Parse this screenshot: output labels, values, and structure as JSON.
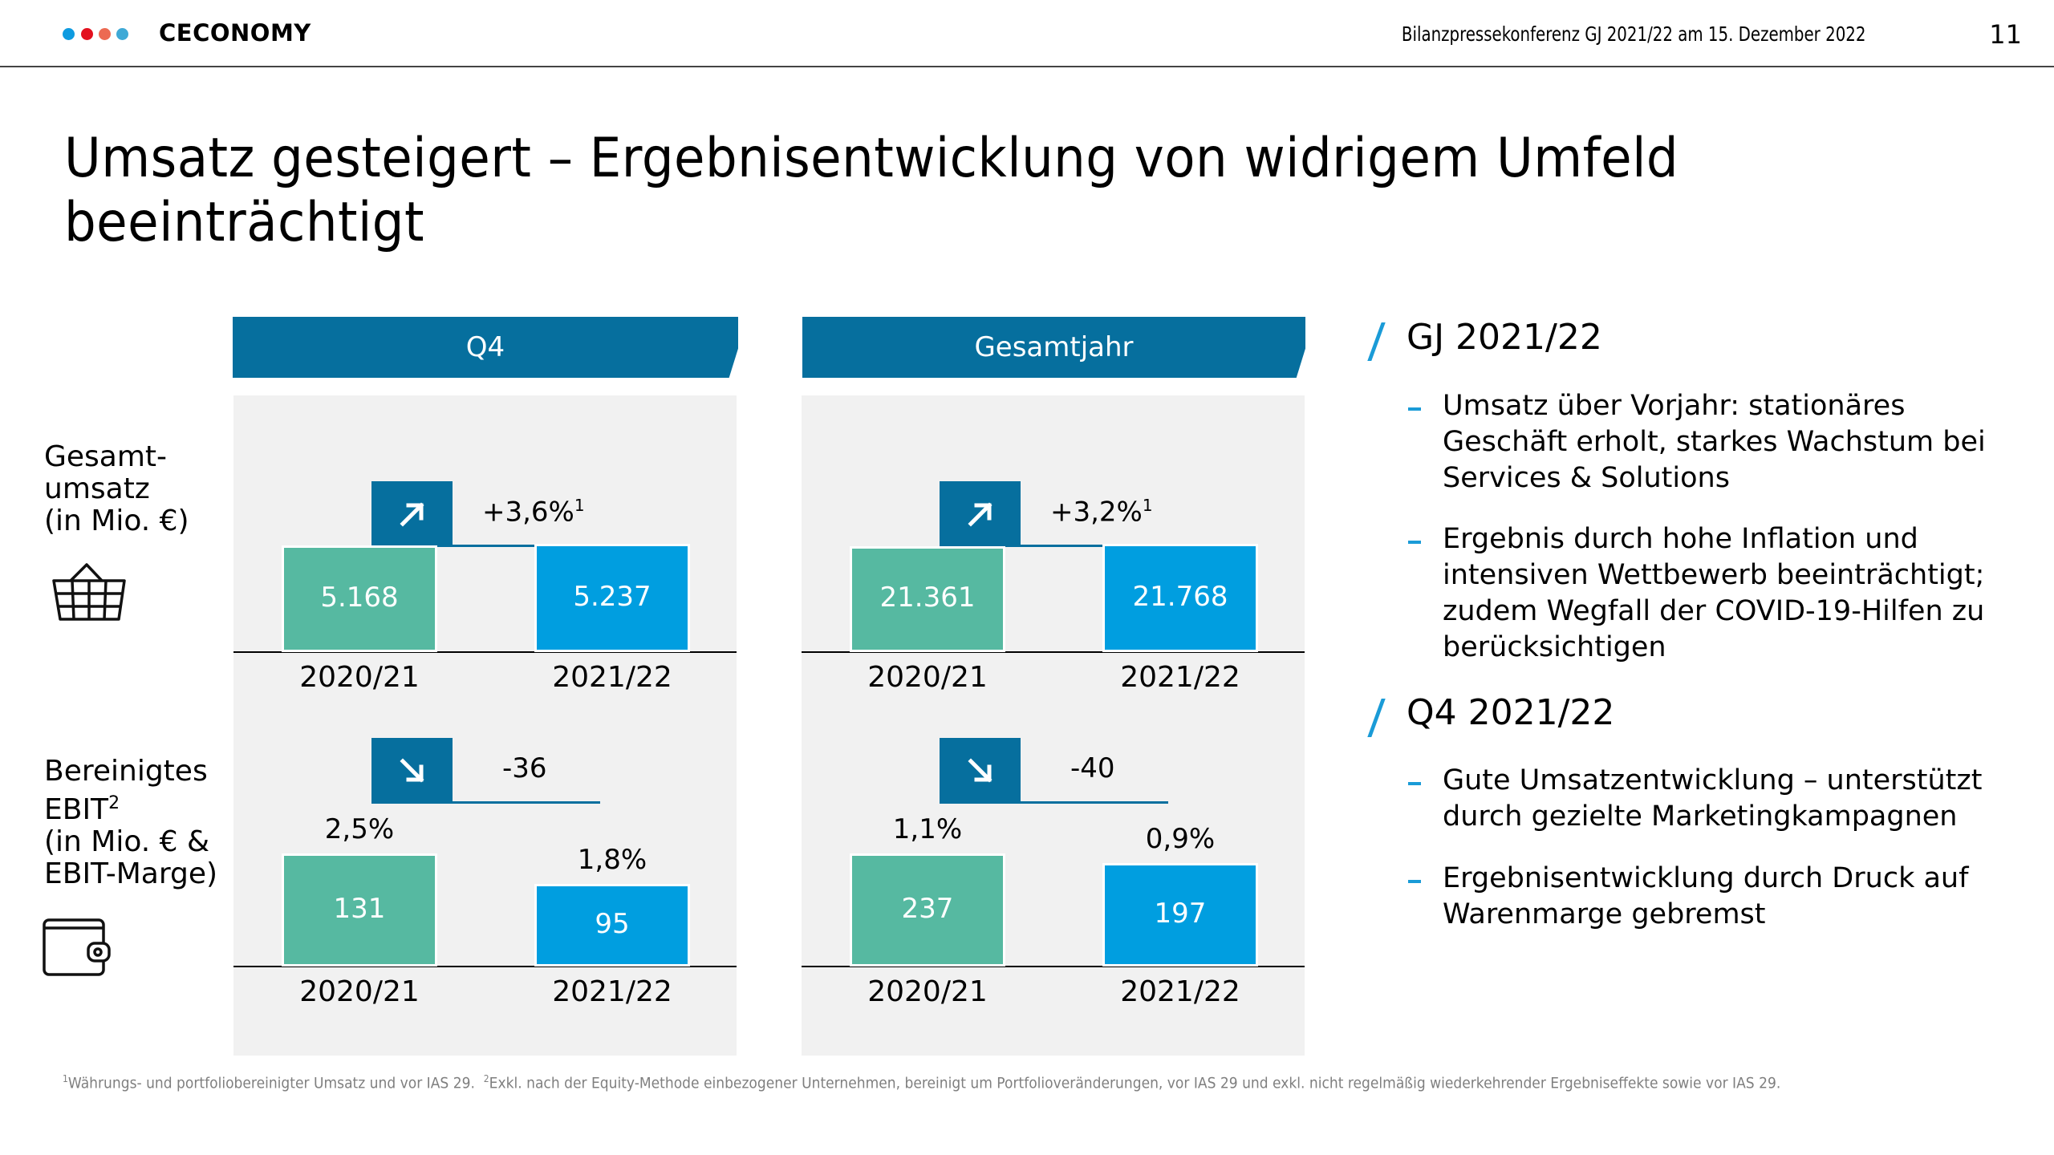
{
  "header": {
    "logo_text": "CECONOMY",
    "logo_dots": [
      "#0e9be0",
      "#e3101e",
      "#ec6a52",
      "#3ea9d6"
    ],
    "conference": "Bilanzpressekonferenz GJ 2021/22 am 15. Dezember 2022",
    "page_number": "11"
  },
  "title": {
    "line1": "Umsatz gesteigert – Ergebnisentwicklung von widrigem Umfeld",
    "line2": "beeinträchtigt"
  },
  "row_labels": {
    "revenue": {
      "line1": "Gesamt-",
      "line2": "umsatz",
      "line3": "(in Mio. €)",
      "icon": "shopping-basket-icon"
    },
    "ebit": {
      "line1": "Bereinigtes",
      "line2": "EBIT",
      "line2_sup": "2",
      "line3": "(in Mio. € &",
      "line4": "EBIT-Marge)",
      "icon": "wallet-icon"
    }
  },
  "colors": {
    "band": "#066f9e",
    "prior_year": "#56b9a1",
    "current_year": "#009ee0",
    "panel_bg": "#f1f1f1",
    "accent": "#1a9bd7"
  },
  "chart_data": [
    {
      "type": "bar",
      "title": "Q4",
      "metric": "Gesamtumsatz (in Mio. €)",
      "categories": [
        "2020/21",
        "2021/22"
      ],
      "values": [
        5168,
        5237
      ],
      "value_labels": [
        "5.168",
        "5.237"
      ],
      "change": {
        "direction": "up",
        "label": "+3,6%",
        "footnote": "1"
      }
    },
    {
      "type": "bar",
      "title": "Q4",
      "metric": "Bereinigtes EBIT (in Mio. € & EBIT-Marge)",
      "categories": [
        "2020/21",
        "2021/22"
      ],
      "values": [
        131,
        95
      ],
      "value_labels": [
        "131",
        "95"
      ],
      "margins": [
        "2,5%",
        "1,8%"
      ],
      "change": {
        "direction": "down",
        "label": "-36",
        "footnote": ""
      }
    },
    {
      "type": "bar",
      "title": "Gesamtjahr",
      "metric": "Gesamtumsatz (in Mio. €)",
      "categories": [
        "2020/21",
        "2021/22"
      ],
      "values": [
        21361,
        21768
      ],
      "value_labels": [
        "21.361",
        "21.768"
      ],
      "change": {
        "direction": "up",
        "label": "+3,2%",
        "footnote": "1"
      }
    },
    {
      "type": "bar",
      "title": "Gesamtjahr",
      "metric": "Bereinigtes EBIT (in Mio. € & EBIT-Marge)",
      "categories": [
        "2020/21",
        "2021/22"
      ],
      "values": [
        237,
        197
      ],
      "value_labels": [
        "237",
        "197"
      ],
      "margins": [
        "1,1%",
        "0,9%"
      ],
      "change": {
        "direction": "down",
        "label": "-40",
        "footnote": ""
      }
    }
  ],
  "panels": [
    {
      "title": "Q4"
    },
    {
      "title": "Gesamtjahr"
    }
  ],
  "sections": [
    {
      "heading": "GJ 2021/22",
      "bullets": [
        "Umsatz über Vorjahr: stationäres Geschäft erholt, starkes Wachstum bei Services & Solutions",
        "Ergebnis durch hohe Inflation und intensiven Wettbewerb beeinträchtigt; zudem Wegfall der COVID-19-Hilfen zu berücksichtigen"
      ]
    },
    {
      "heading": "Q4 2021/22",
      "bullets": [
        "Gute Umsatzentwicklung – unterstützt durch gezielte Marketingkampagnen",
        "Ergebnisentwicklung durch Druck auf Warenmarge gebremst"
      ]
    }
  ],
  "footnote": {
    "fn1_mark": "1",
    "fn1": "Währungs- und portfoliobereinigter Umsatz und vor IAS 29.",
    "fn2_mark": "2",
    "fn2": "Exkl. nach der Equity-Methode einbezogener Unternehmen, bereinigt um Portfolioveränderungen, vor IAS 29 und exkl. nicht regelmäßig wiederkehrender Ergebniseffekte sowie vor IAS 29."
  }
}
